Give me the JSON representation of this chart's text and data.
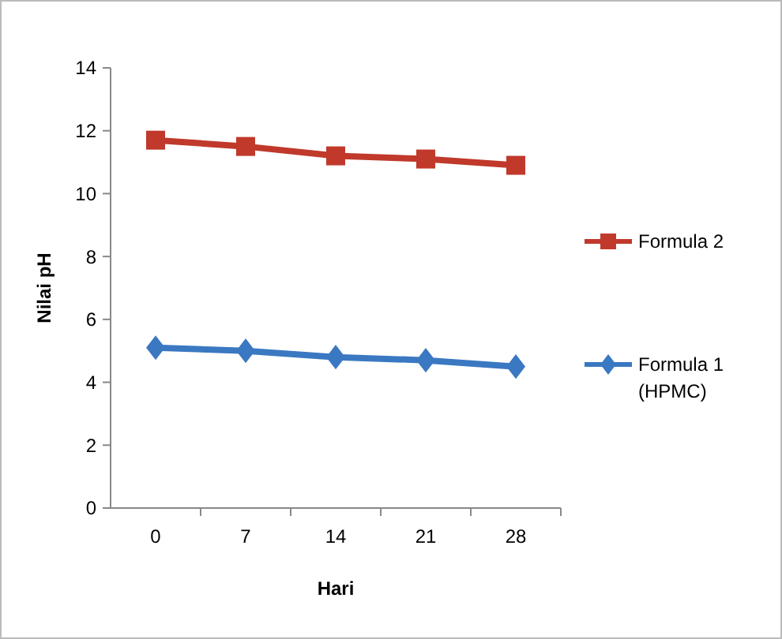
{
  "chart_data": {
    "type": "line",
    "xlabel": "Hari",
    "ylabel": "Nilai pH",
    "categories": [
      "0",
      "7",
      "14",
      "21",
      "28"
    ],
    "ylim": [
      0,
      14
    ],
    "yticks": [
      0,
      2,
      4,
      6,
      8,
      10,
      12,
      14
    ],
    "grid": false,
    "legend": "right",
    "series": [
      {
        "name": "Formula 2",
        "color": "#c0392b",
        "marker": "square",
        "values": [
          11.7,
          11.5,
          11.2,
          11.1,
          10.9
        ]
      },
      {
        "name": "Formula 1 (HPMC)",
        "color": "#3a78c2",
        "marker": "diamond",
        "values": [
          5.1,
          5.0,
          4.8,
          4.7,
          4.5
        ]
      }
    ]
  }
}
